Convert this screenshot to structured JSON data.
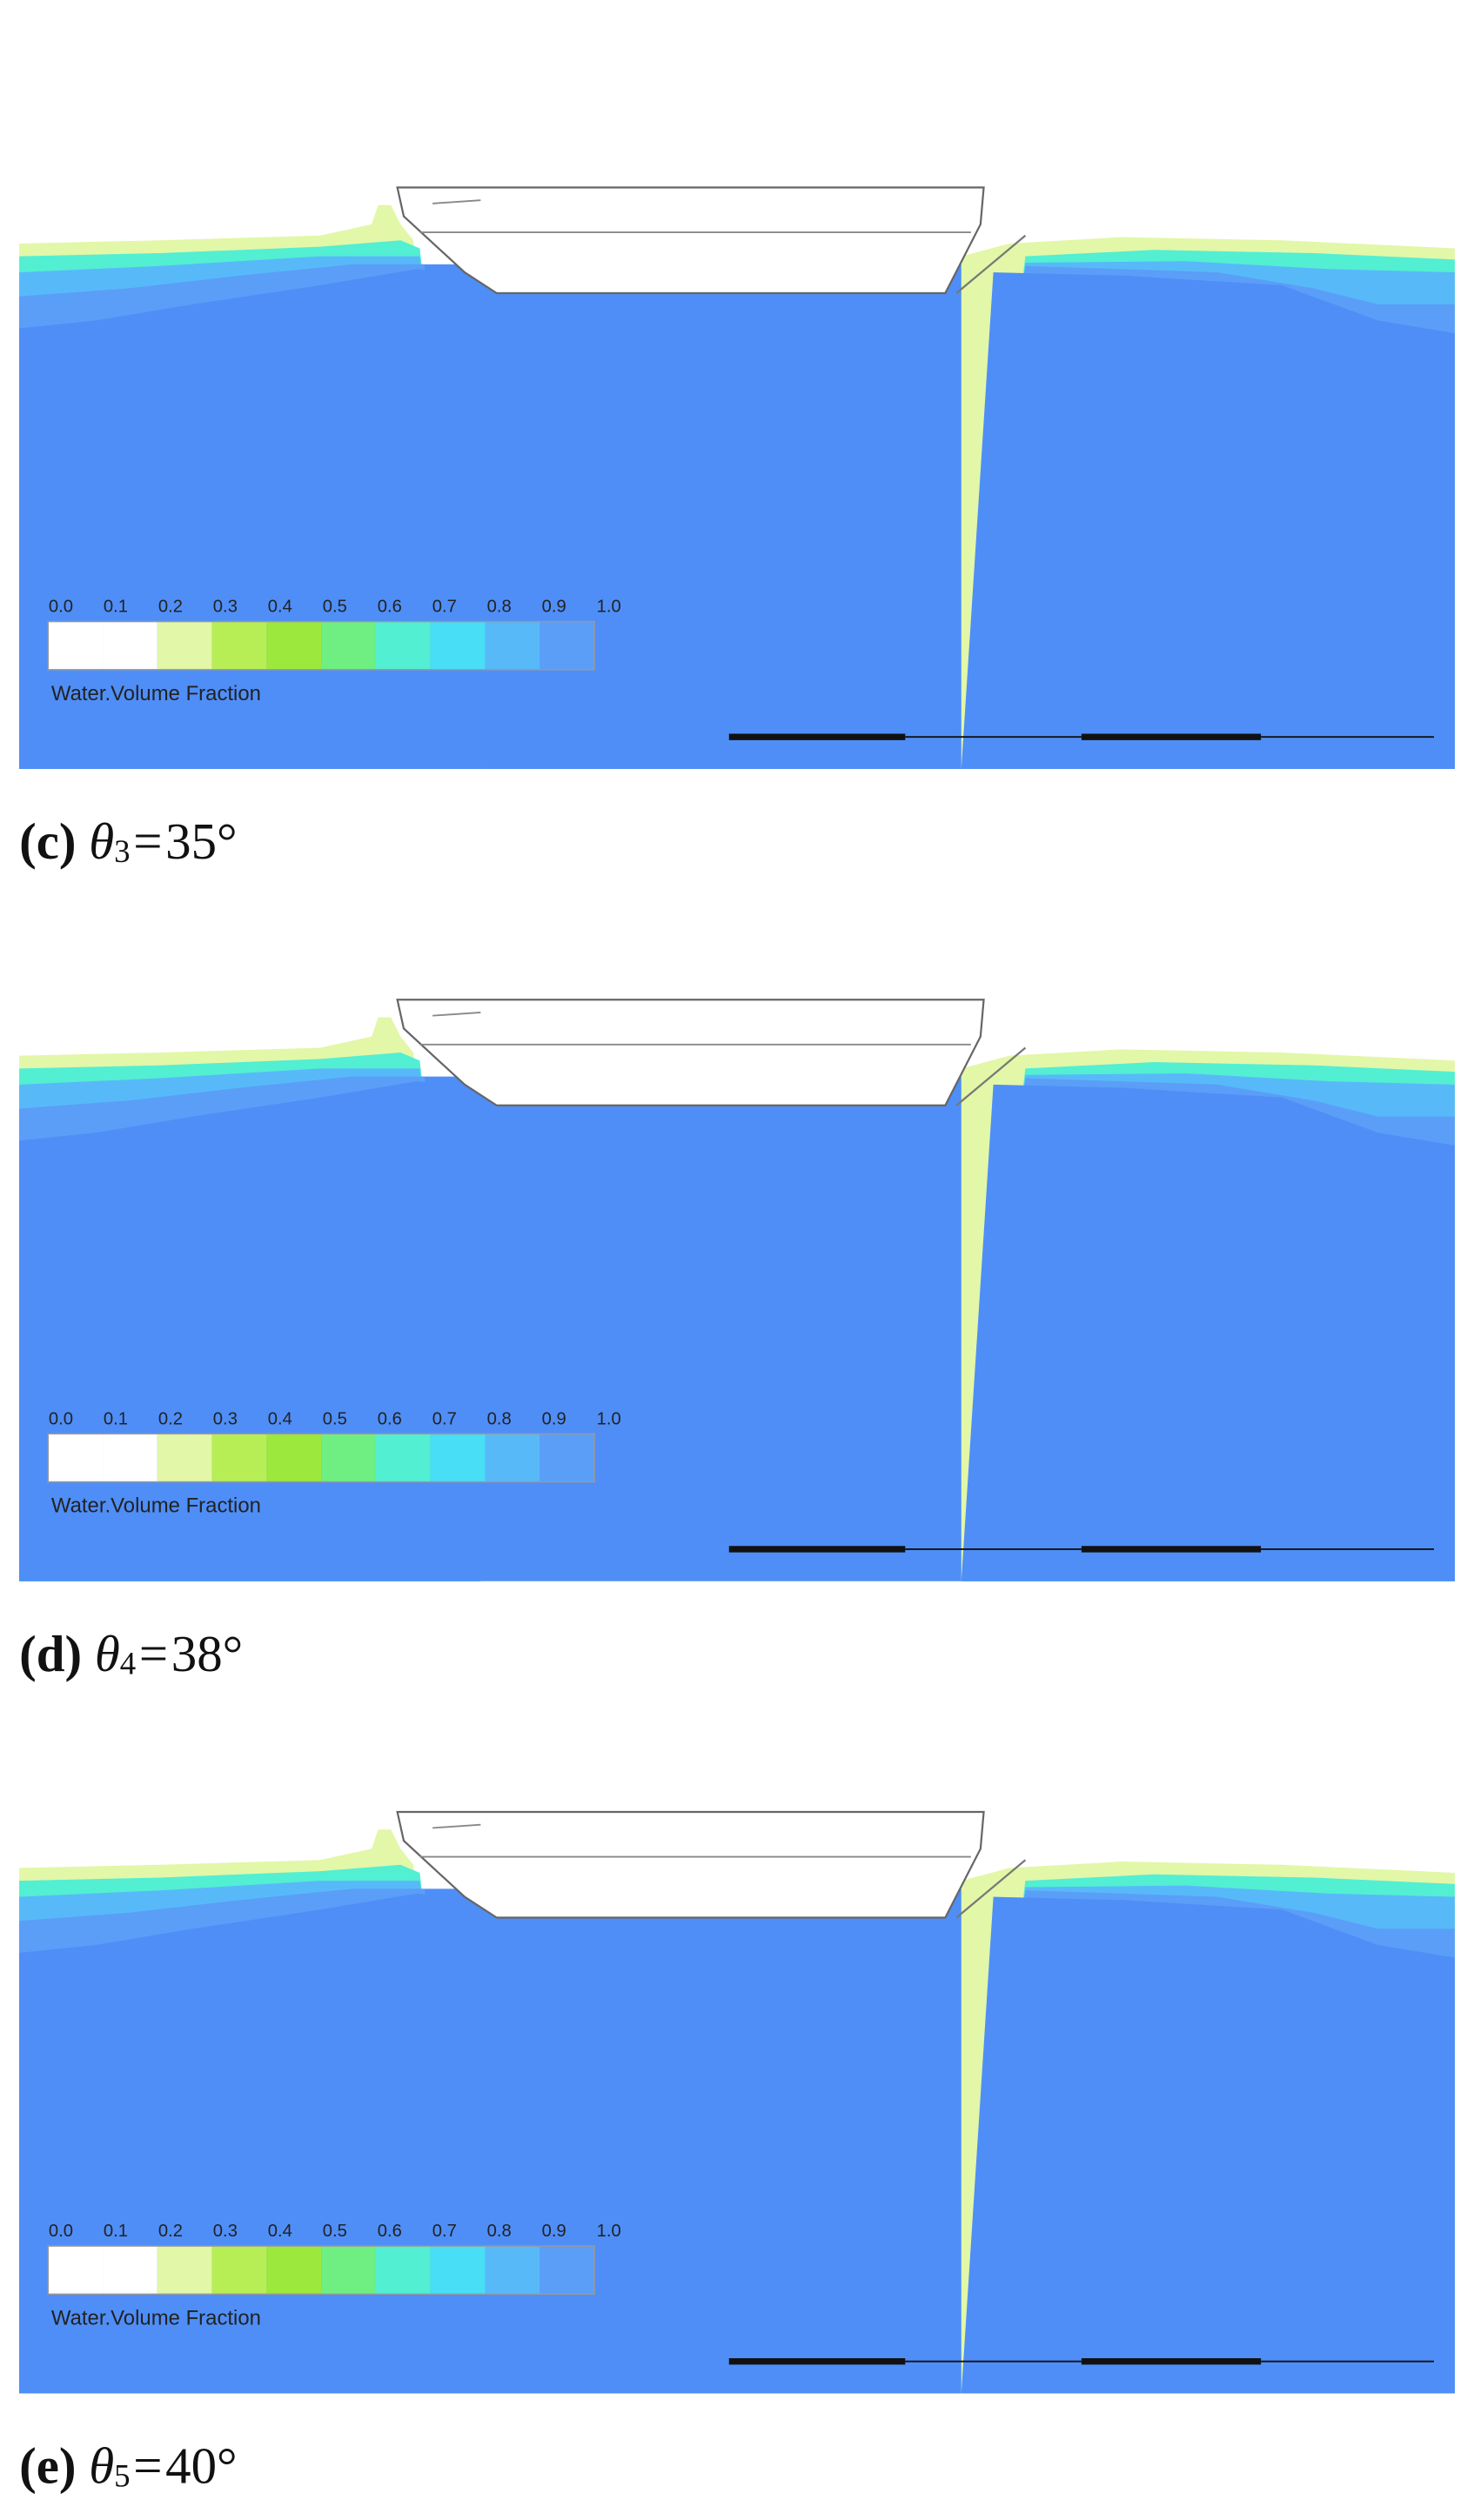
{
  "legend": {
    "title": "Water.Volume Fraction",
    "ticks": [
      "0.0",
      "0.1",
      "0.2",
      "0.3",
      "0.4",
      "0.5",
      "0.6",
      "0.7",
      "0.8",
      "0.9",
      "1.0"
    ],
    "colors": [
      "#ffffff",
      "#ffffff",
      "#e2f7a8",
      "#b8ee55",
      "#9de83c",
      "#6fef82",
      "#52efd2",
      "#48def5",
      "#58b9f8",
      "#5a9ef8"
    ]
  },
  "water_color": "#4f8ef7",
  "panels": [
    {
      "label": "(c)",
      "symbol": "θ",
      "index": "3",
      "relation": "=",
      "value": "35°"
    },
    {
      "label": "(d)",
      "symbol": "θ",
      "index": "4",
      "relation": "=",
      "value": "38°"
    },
    {
      "label": "(e)",
      "symbol": "θ",
      "index": "5",
      "relation": "=",
      "value": "40°"
    }
  ]
}
